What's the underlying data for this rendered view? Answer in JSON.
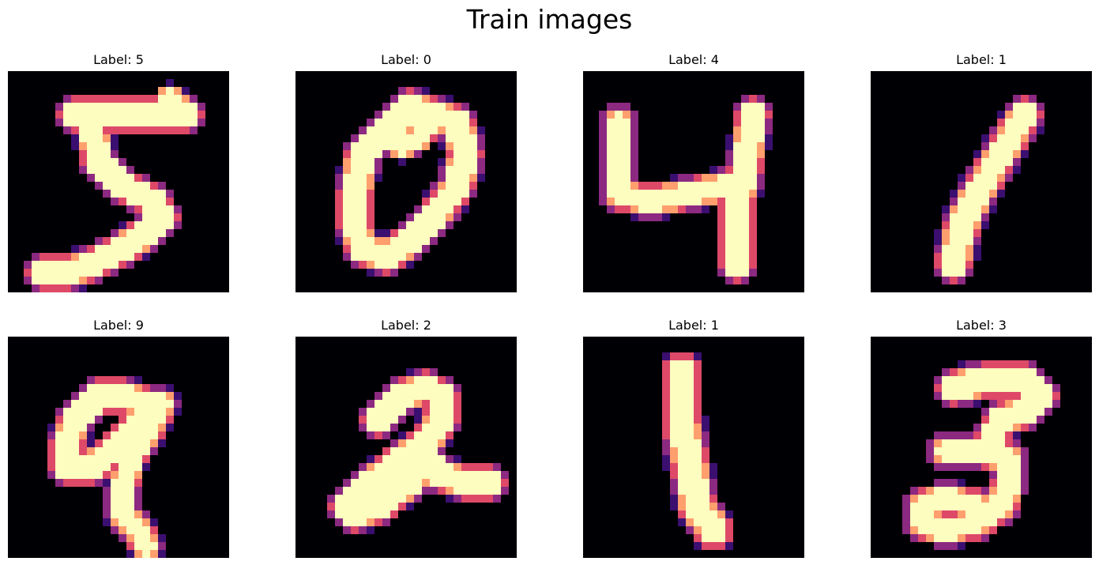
{
  "figure": {
    "title": "Train images",
    "colormap": [
      "#000004",
      "#3b0f70",
      "#8c2981",
      "#de4968",
      "#fe9f6d",
      "#fcfdbf"
    ],
    "panels": [
      {
        "title": "Label: 5",
        "digit": "5",
        "strokes": [
          {
            "pts": [
              [
                8.5,
                5.5
              ],
              [
                22.5,
                5.5
              ]
            ],
            "w": 2.6
          },
          {
            "pts": [
              [
                22.5,
                5.5
              ],
              [
                20.5,
                3.5
              ]
            ],
            "w": 2.2
          },
          {
            "pts": [
              [
                10.5,
                6.5
              ],
              [
                11.5,
                11.5
              ],
              [
                14.5,
                14.5
              ],
              [
                18.5,
                16.5
              ],
              [
                19.5,
                18.5
              ],
              [
                17.5,
                20.5
              ],
              [
                14.5,
                22.5
              ],
              [
                10.5,
                24.5
              ],
              [
                7.5,
                25.5
              ]
            ],
            "w": 2.6
          },
          {
            "pts": [
              [
                7.5,
                25.5
              ],
              [
                4.5,
                25.5
              ]
            ],
            "w": 2.6
          }
        ]
      },
      {
        "title": "Label: 0",
        "digit": "0",
        "strokes": [
          {
            "pts": [
              [
                17.5,
                5.5
              ],
              [
                14.5,
                4.5
              ],
              [
                11.5,
                7.5
              ],
              [
                8.5,
                10.5
              ],
              [
                7.5,
                15.5
              ],
              [
                7.5,
                19.5
              ],
              [
                8.5,
                22.5
              ],
              [
                11.5,
                23.5
              ],
              [
                14.5,
                21.5
              ],
              [
                17.5,
                18.5
              ],
              [
                20.5,
                14.5
              ],
              [
                21.5,
                10.5
              ],
              [
                20.5,
                6.5
              ],
              [
                17.5,
                5.5
              ]
            ],
            "w": 2.7
          },
          {
            "pts": [
              [
                17.5,
                5.5
              ],
              [
                15.5,
                8.5
              ],
              [
                13.5,
                9.5
              ]
            ],
            "w": 2.2
          }
        ]
      },
      {
        "title": "Label: 4",
        "digit": "4",
        "strokes": [
          {
            "pts": [
              [
                4.5,
                6.5
              ],
              [
                4.5,
                15.5
              ],
              [
                8.5,
                16.5
              ],
              [
                13.5,
                15.5
              ],
              [
                18.5,
                14.5
              ],
              [
                20.5,
                13.5
              ]
            ],
            "w": 2.5
          },
          {
            "pts": [
              [
                21.5,
                5.5
              ],
              [
                20.5,
                12.5
              ],
              [
                19.5,
                17.5
              ],
              [
                19.5,
                24.5
              ]
            ],
            "w": 2.6
          }
        ]
      },
      {
        "title": "Label: 1",
        "digit": "1",
        "strokes": [
          {
            "pts": [
              [
                19.5,
                5.5
              ],
              [
                16.5,
                10.5
              ],
              [
                13.5,
                15.5
              ],
              [
                11.5,
                19.5
              ],
              [
                10.5,
                24.5
              ]
            ],
            "w": 2.8
          }
        ]
      },
      {
        "title": "Label: 9",
        "digit": "9",
        "strokes": [
          {
            "pts": [
              [
                17.5,
                8.5
              ],
              [
                14.5,
                7.5
              ],
              [
                11.5,
                7.5
              ],
              [
                8.5,
                10.5
              ],
              [
                7.5,
                13.5
              ],
              [
                7.5,
                16.5
              ],
              [
                10.5,
                16.5
              ],
              [
                14.5,
                13.5
              ],
              [
                17.5,
                9.5
              ]
            ],
            "w": 2.6
          },
          {
            "pts": [
              [
                19.5,
                8.5
              ],
              [
                17.5,
                12.5
              ],
              [
                15.5,
                15.5
              ],
              [
                14.5,
                19.5
              ],
              [
                14.5,
                22.5
              ],
              [
                16.5,
                24.5
              ],
              [
                17.5,
                26.5
              ]
            ],
            "w": 2.4
          }
        ]
      },
      {
        "title": "Label: 2",
        "digit": "2",
        "strokes": [
          {
            "pts": [
              [
                10.5,
                10.5
              ],
              [
                13.5,
                7.5
              ],
              [
                16.5,
                6.5
              ],
              [
                18.5,
                7.5
              ],
              [
                18.5,
                10.5
              ],
              [
                16.5,
                13.5
              ],
              [
                13.5,
                15.5
              ],
              [
                9.5,
                18.5
              ],
              [
                6.5,
                21.5
              ],
              [
                7.5,
                22.5
              ],
              [
                10.5,
                21.5
              ],
              [
                14.5,
                18.5
              ],
              [
                16.5,
                15.5
              ],
              [
                18.5,
                17.5
              ],
              [
                21.5,
                18.5
              ],
              [
                24.5,
                18.5
              ]
            ],
            "w": 2.6
          }
        ]
      },
      {
        "title": "Label: 1",
        "digit": "1",
        "strokes": [
          {
            "pts": [
              [
                12.5,
                4.5
              ],
              [
                12.5,
                10.5
              ],
              [
                13.5,
                16.5
              ],
              [
                14.5,
                21.5
              ],
              [
                16.5,
                24.5
              ]
            ],
            "w": 3.0
          }
        ]
      },
      {
        "title": "Label: 3",
        "digit": "3",
        "strokes": [
          {
            "pts": [
              [
                10.5,
                6.5
              ],
              [
                14.5,
                5.5
              ],
              [
                19.5,
                5.5
              ],
              [
                21.5,
                7.5
              ],
              [
                19.5,
                9.5
              ],
              [
                16.5,
                10.5
              ],
              [
                15.5,
                12.5
              ],
              [
                14.5,
                14.5
              ]
            ],
            "w": 2.7
          },
          {
            "pts": [
              [
                9.5,
                14.5
              ],
              [
                14.5,
                14.5
              ],
              [
                17.5,
                15.5
              ],
              [
                17.5,
                18.5
              ],
              [
                16.5,
                21.5
              ],
              [
                13.5,
                23.5
              ],
              [
                9.5,
                24.5
              ],
              [
                6.5,
                23.5
              ],
              [
                6.5,
                21.5
              ],
              [
                9.5,
                20.5
              ],
              [
                13.5,
                21.5
              ]
            ],
            "w": 2.5
          }
        ]
      }
    ]
  }
}
